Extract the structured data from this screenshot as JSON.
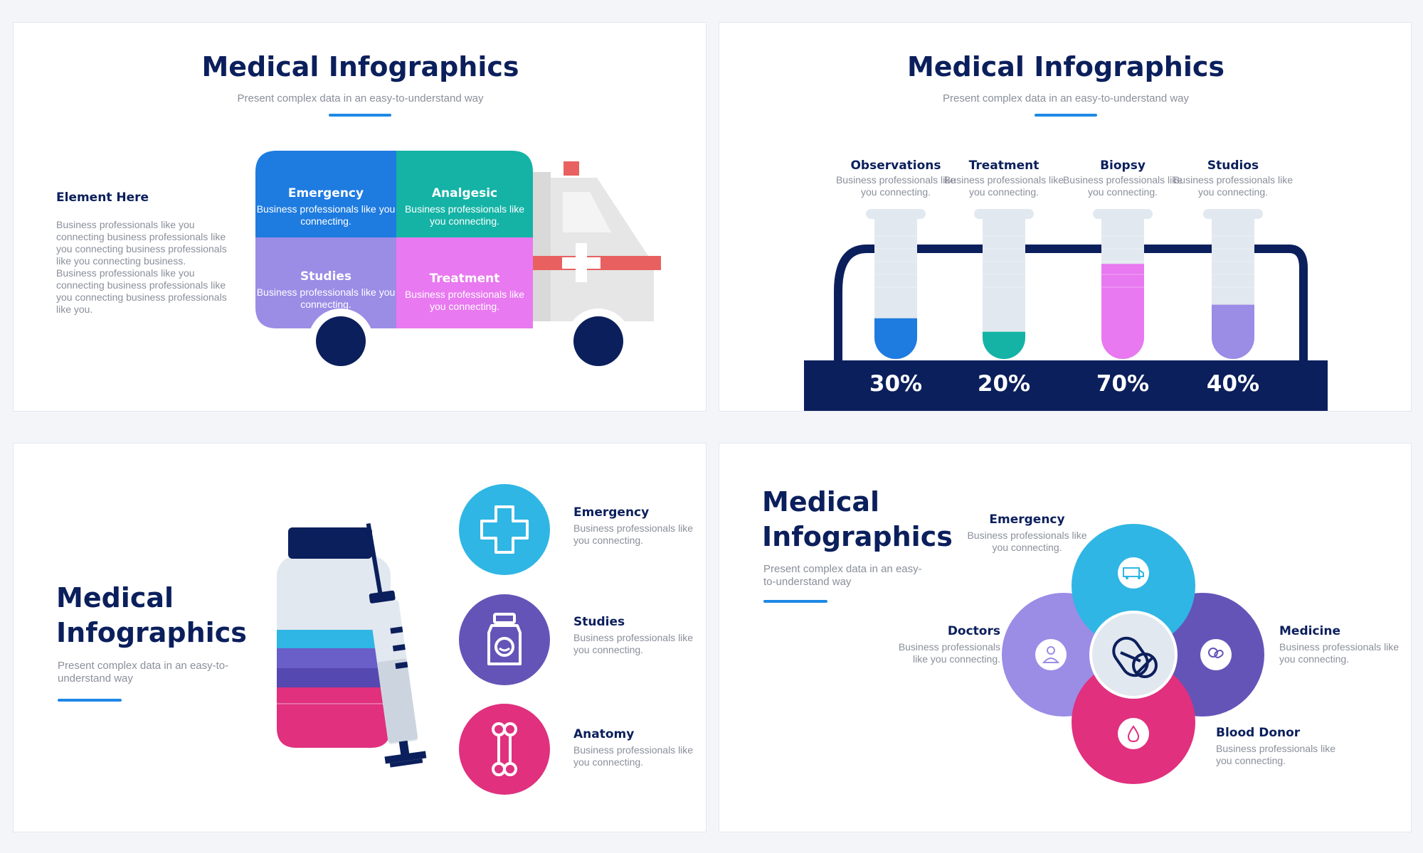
{
  "colors": {
    "navy": "#0b1f5c",
    "blue": "#1e7be0",
    "teal": "#14b3a6",
    "lavender": "#9b8ce6",
    "pink": "#e879f0",
    "cyan": "#2fb6e4",
    "purple": "#6454b8",
    "magenta": "#e0307e",
    "gray": "#8a8f9a",
    "red": "#e96060"
  },
  "slide1": {
    "title": "Medical Infographics",
    "subtitle": "Present complex data in an easy-to-understand way",
    "element_title": "Element Here",
    "element_text": "Business professionals like you connecting business professionals like you connecting business professionals like you connecting business. Business professionals like you connecting business professionals like you connecting business professionals like you.",
    "cells": [
      {
        "title": "Emergency",
        "text": "Business professionals like you connecting."
      },
      {
        "title": "Analgesic",
        "text": "Business professionals like you connecting."
      },
      {
        "title": "Studies",
        "text": "Business professionals like you connecting."
      },
      {
        "title": "Treatment",
        "text": "Business professionals like you connecting."
      }
    ]
  },
  "slide2": {
    "title": "Medical Infographics",
    "subtitle": "Present complex data in an easy-to-understand way",
    "tubes": [
      {
        "title": "Observations",
        "text": "Business professionals like you connecting.",
        "percent_label": "30%",
        "fill": 0.3,
        "color": "#1e7be0"
      },
      {
        "title": "Treatment",
        "text": "Business professionals like you connecting.",
        "percent_label": "20%",
        "fill": 0.2,
        "color": "#14b3a6"
      },
      {
        "title": "Biopsy",
        "text": "Business professionals like you connecting.",
        "percent_label": "70%",
        "fill": 0.7,
        "color": "#e879f0"
      },
      {
        "title": "Studios",
        "text": "Business professionals like you connecting.",
        "percent_label": "40%",
        "fill": 0.4,
        "color": "#9b8ce6"
      }
    ]
  },
  "slide3": {
    "title_line1": "Medical",
    "title_line2": "Infographics",
    "subtitle": "Present complex data in an easy-to-understand way",
    "items": [
      {
        "title": "Emergency",
        "text": "Business professionals like you connecting.",
        "icon": "plus-icon",
        "color": "#2fb6e4"
      },
      {
        "title": "Studies",
        "text": "Business professionals like you connecting.",
        "icon": "bottle-icon",
        "color": "#6454b8"
      },
      {
        "title": "Anatomy",
        "text": "Business professionals like you connecting.",
        "icon": "bone-icon",
        "color": "#e0307e"
      }
    ]
  },
  "slide4": {
    "title_line1": "Medical",
    "title_line2": "Infographics",
    "subtitle": "Present complex data in an easy-to-understand way",
    "petals": {
      "emergency": {
        "title": "Emergency",
        "text": "Business professionals like you connecting.",
        "icon": "ambulance-icon"
      },
      "doctors": {
        "title": "Doctors",
        "text": "Business professionals like you connecting.",
        "icon": "doctor-icon"
      },
      "medicine": {
        "title": "Medicine",
        "text": "Business professionals like you connecting.",
        "icon": "pills-icon"
      },
      "blood_donor": {
        "title": "Blood Donor",
        "text": "Business professionals like you connecting.",
        "icon": "blood-drop-icon"
      }
    },
    "center_icon": "capsule-icon"
  }
}
